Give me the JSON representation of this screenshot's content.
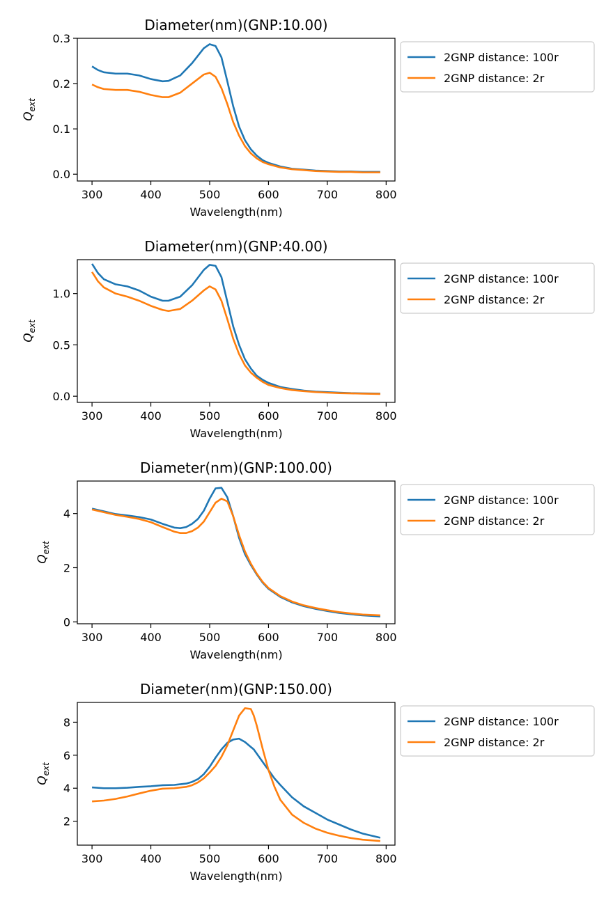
{
  "colors": {
    "series1": "#1f77b4",
    "series2": "#ff7f0e"
  },
  "chart_data": [
    {
      "type": "line",
      "title": "Diameter(nm)(GNP:10.00)",
      "xlabel": "Wavelength(nm)",
      "ylabel": {
        "main": "Q",
        "sub": "ext"
      },
      "xlim": [
        275,
        815
      ],
      "ylim": [
        -0.015,
        0.3
      ],
      "xticks": [
        300,
        400,
        500,
        600,
        700,
        800
      ],
      "yticks": [
        0.0,
        0.1,
        0.2,
        0.3
      ],
      "ytick_labels": [
        "0.0",
        "0.1",
        "0.2",
        "0.3"
      ],
      "legend": "outside-right",
      "x": [
        300,
        310,
        320,
        340,
        360,
        380,
        400,
        420,
        430,
        450,
        470,
        490,
        500,
        510,
        520,
        530,
        540,
        550,
        560,
        570,
        580,
        590,
        600,
        620,
        640,
        660,
        680,
        700,
        720,
        740,
        760,
        790
      ],
      "series": [
        {
          "name": "2GNP distance: 100r",
          "values": [
            0.238,
            0.23,
            0.225,
            0.222,
            0.222,
            0.218,
            0.21,
            0.205,
            0.206,
            0.218,
            0.245,
            0.278,
            0.287,
            0.283,
            0.258,
            0.205,
            0.15,
            0.105,
            0.075,
            0.055,
            0.041,
            0.031,
            0.025,
            0.017,
            0.012,
            0.01,
            0.008,
            0.007,
            0.006,
            0.006,
            0.005,
            0.005
          ]
        },
        {
          "name": "2GNP distance: 2r",
          "values": [
            0.198,
            0.192,
            0.188,
            0.186,
            0.186,
            0.182,
            0.175,
            0.17,
            0.17,
            0.18,
            0.2,
            0.22,
            0.224,
            0.215,
            0.19,
            0.155,
            0.115,
            0.085,
            0.062,
            0.046,
            0.035,
            0.027,
            0.022,
            0.015,
            0.011,
            0.009,
            0.007,
            0.006,
            0.005,
            0.005,
            0.004,
            0.004
          ]
        }
      ]
    },
    {
      "type": "line",
      "title": "Diameter(nm)(GNP:40.00)",
      "xlabel": "Wavelength(nm)",
      "ylabel": {
        "main": "Q",
        "sub": "ext"
      },
      "xlim": [
        275,
        815
      ],
      "ylim": [
        -0.06,
        1.33
      ],
      "xticks": [
        300,
        400,
        500,
        600,
        700,
        800
      ],
      "yticks": [
        0.0,
        0.5,
        1.0
      ],
      "ytick_labels": [
        "0.0",
        "0.5",
        "1.0"
      ],
      "legend": "outside-right",
      "x": [
        300,
        310,
        320,
        340,
        360,
        380,
        400,
        420,
        430,
        450,
        470,
        490,
        500,
        510,
        520,
        530,
        540,
        550,
        560,
        570,
        580,
        590,
        600,
        620,
        640,
        660,
        680,
        700,
        720,
        740,
        760,
        790
      ],
      "series": [
        {
          "name": "2GNP distance: 100r",
          "values": [
            1.29,
            1.2,
            1.14,
            1.09,
            1.07,
            1.03,
            0.97,
            0.93,
            0.93,
            0.97,
            1.08,
            1.23,
            1.28,
            1.27,
            1.16,
            0.92,
            0.68,
            0.5,
            0.36,
            0.27,
            0.2,
            0.16,
            0.13,
            0.09,
            0.07,
            0.055,
            0.045,
            0.04,
            0.035,
            0.03,
            0.028,
            0.025
          ]
        },
        {
          "name": "2GNP distance: 2r",
          "values": [
            1.21,
            1.12,
            1.06,
            1.0,
            0.97,
            0.93,
            0.88,
            0.84,
            0.83,
            0.85,
            0.93,
            1.03,
            1.07,
            1.04,
            0.93,
            0.75,
            0.56,
            0.41,
            0.3,
            0.23,
            0.18,
            0.14,
            0.11,
            0.08,
            0.06,
            0.05,
            0.04,
            0.035,
            0.03,
            0.028,
            0.025,
            0.022
          ]
        }
      ]
    },
    {
      "type": "line",
      "title": "Diameter(nm)(GNP:100.00)",
      "xlabel": "Wavelength(nm)",
      "ylabel": {
        "main": "Q",
        "sub": "ext"
      },
      "xlim": [
        275,
        815
      ],
      "ylim": [
        -0.07,
        5.2
      ],
      "xticks": [
        300,
        400,
        500,
        600,
        700,
        800
      ],
      "yticks": [
        0,
        2,
        4
      ],
      "ytick_labels": [
        "0",
        "2",
        "4"
      ],
      "legend": "outside-right",
      "x": [
        300,
        320,
        340,
        360,
        380,
        400,
        420,
        440,
        450,
        460,
        470,
        480,
        490,
        500,
        510,
        520,
        530,
        540,
        550,
        560,
        570,
        580,
        590,
        600,
        620,
        640,
        660,
        680,
        700,
        720,
        740,
        760,
        790
      ],
      "series": [
        {
          "name": "2GNP distance: 100r",
          "values": [
            4.18,
            4.08,
            3.98,
            3.93,
            3.87,
            3.78,
            3.62,
            3.48,
            3.46,
            3.5,
            3.62,
            3.8,
            4.1,
            4.55,
            4.93,
            4.95,
            4.6,
            3.9,
            3.1,
            2.5,
            2.1,
            1.75,
            1.45,
            1.22,
            0.92,
            0.72,
            0.58,
            0.48,
            0.4,
            0.33,
            0.28,
            0.24,
            0.2
          ]
        },
        {
          "name": "2GNP distance: 2r",
          "values": [
            4.15,
            4.05,
            3.95,
            3.88,
            3.8,
            3.68,
            3.5,
            3.33,
            3.28,
            3.28,
            3.35,
            3.48,
            3.7,
            4.05,
            4.4,
            4.55,
            4.45,
            3.9,
            3.2,
            2.6,
            2.15,
            1.78,
            1.48,
            1.25,
            0.95,
            0.75,
            0.61,
            0.51,
            0.43,
            0.36,
            0.31,
            0.27,
            0.24
          ]
        }
      ]
    },
    {
      "type": "line",
      "title": "Diameter(nm)(GNP:150.00)",
      "xlabel": "Wavelength(nm)",
      "ylabel": {
        "main": "Q",
        "sub": "ext"
      },
      "xlim": [
        275,
        815
      ],
      "ylim": [
        0.55,
        9.2
      ],
      "xticks": [
        300,
        400,
        500,
        600,
        700,
        800
      ],
      "yticks": [
        2,
        4,
        6,
        8
      ],
      "ytick_labels": [
        "2",
        "4",
        "6",
        "8"
      ],
      "legend": "outside-right",
      "x": [
        300,
        320,
        340,
        360,
        380,
        400,
        420,
        440,
        460,
        470,
        480,
        490,
        500,
        510,
        520,
        530,
        540,
        550,
        560,
        570,
        575,
        580,
        590,
        600,
        610,
        620,
        640,
        660,
        680,
        700,
        720,
        740,
        760,
        790
      ],
      "series": [
        {
          "name": "2GNP distance: 100r",
          "values": [
            4.05,
            4.0,
            4.0,
            4.03,
            4.08,
            4.12,
            4.18,
            4.2,
            4.28,
            4.38,
            4.55,
            4.85,
            5.3,
            5.85,
            6.35,
            6.75,
            6.95,
            7.0,
            6.8,
            6.5,
            6.35,
            6.1,
            5.6,
            5.1,
            4.6,
            4.2,
            3.45,
            2.9,
            2.5,
            2.1,
            1.8,
            1.5,
            1.25,
            1.0
          ]
        },
        {
          "name": "2GNP distance: 2r",
          "values": [
            3.2,
            3.25,
            3.35,
            3.5,
            3.68,
            3.85,
            3.97,
            4.0,
            4.08,
            4.18,
            4.35,
            4.6,
            4.95,
            5.35,
            5.9,
            6.6,
            7.5,
            8.4,
            8.85,
            8.8,
            8.4,
            7.8,
            6.4,
            5.1,
            4.1,
            3.3,
            2.4,
            1.9,
            1.55,
            1.3,
            1.12,
            0.98,
            0.88,
            0.8
          ]
        }
      ]
    }
  ]
}
